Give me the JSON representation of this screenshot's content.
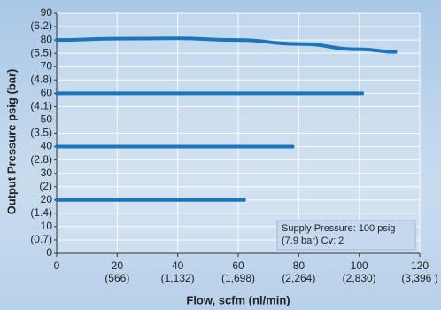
{
  "chart_data": {
    "type": "line",
    "xlabel": "Flow, scfm (nl/min)",
    "ylabel": "Output Pressure psig (bar)",
    "xlim": [
      0,
      120
    ],
    "ylim": [
      0,
      90
    ],
    "xticks": [
      {
        "value": 0,
        "label": "0"
      },
      {
        "value": 20,
        "label": "20",
        "sublabel": "(566)"
      },
      {
        "value": 40,
        "label": "40",
        "sublabel": "(1,132)"
      },
      {
        "value": 60,
        "label": "60",
        "sublabel": "(1,698)"
      },
      {
        "value": 80,
        "label": "80",
        "sublabel": "(2,264)"
      },
      {
        "value": 100,
        "label": "100",
        "sublabel": "(2,830)"
      },
      {
        "value": 120,
        "label": "120",
        "sublabel": "(3,396 )"
      }
    ],
    "yticks": [
      0,
      {
        "value": 5,
        "label": "(0.7)"
      },
      10,
      {
        "value": 15,
        "label": "(1.4)"
      },
      20,
      {
        "value": 25,
        "label": "(2)"
      },
      30,
      {
        "value": 35,
        "label": "(2.8)"
      },
      40,
      {
        "value": 45,
        "label": "(3.5)"
      },
      50,
      {
        "value": 55,
        "label": "(4.1)"
      },
      60,
      {
        "value": 65,
        "label": "(4.8)"
      },
      70,
      {
        "value": 75,
        "label": "(5.5)"
      },
      80,
      {
        "value": 85,
        "label": "(6.2)"
      },
      90
    ],
    "grid": true,
    "series": [
      {
        "color": "#1b75bb",
        "x": [
          0,
          20,
          40,
          60,
          80,
          100,
          112
        ],
        "values": [
          80,
          80.5,
          80.6,
          80,
          78.5,
          76.5,
          75.5
        ]
      },
      {
        "color": "#1b75bb",
        "x": [
          0,
          101
        ],
        "values": [
          60,
          60
        ]
      },
      {
        "color": "#1b75bb",
        "x": [
          0,
          78
        ],
        "values": [
          40,
          40
        ]
      },
      {
        "color": "#1b75bb",
        "x": [
          0,
          62
        ],
        "values": [
          20,
          20
        ]
      }
    ],
    "annotation": [
      "Supply Pressure: 100 psig",
      "(7.9 bar) Cv: 2"
    ]
  }
}
